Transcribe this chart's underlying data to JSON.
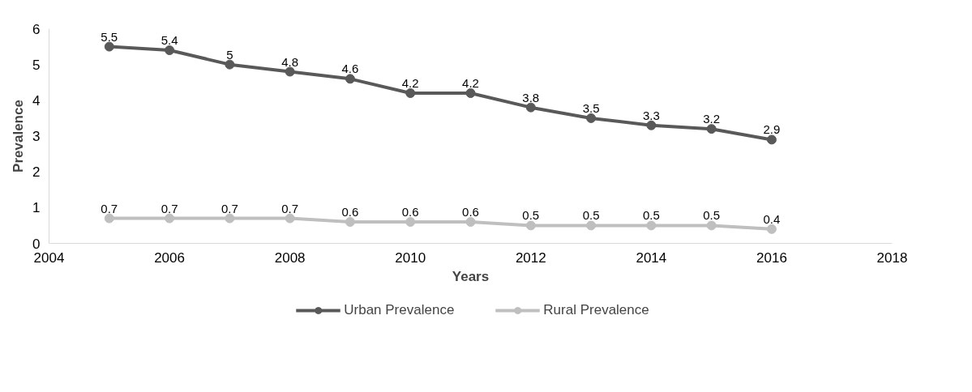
{
  "chart_data": {
    "type": "line",
    "xlabel": "Years",
    "ylabel": "Prevalence",
    "x": [
      2005,
      2006,
      2007,
      2008,
      2009,
      2010,
      2011,
      2012,
      2013,
      2014,
      2015,
      2016
    ],
    "series": [
      {
        "name": "Urban Prevalence",
        "color": "#595959",
        "values": [
          5.5,
          5.4,
          5,
          4.8,
          4.6,
          4.2,
          4.2,
          3.8,
          3.5,
          3.3,
          3.2,
          2.9
        ]
      },
      {
        "name": "Rural Prevalence",
        "color": "#bfbfbf",
        "values": [
          0.7,
          0.7,
          0.7,
          0.7,
          0.6,
          0.6,
          0.6,
          0.5,
          0.5,
          0.5,
          0.5,
          0.4
        ]
      }
    ],
    "xlim": [
      2004,
      2018
    ],
    "xticks": [
      2004,
      2006,
      2008,
      2010,
      2012,
      2014,
      2016,
      2018
    ],
    "ylim": [
      0,
      6
    ],
    "yticks": [
      0,
      1,
      2,
      3,
      4,
      5,
      6
    ],
    "data_labels": true,
    "grid": false,
    "legend": "bottom",
    "marker": "circle",
    "line_style": "solid"
  }
}
